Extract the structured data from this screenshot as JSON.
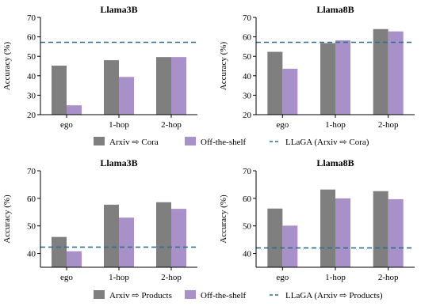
{
  "chart_data": [
    {
      "type": "bar",
      "title": "Llama3B",
      "categories": [
        "ego",
        "1-hop",
        "2-hop"
      ],
      "ylabel": "Accuracy (%)",
      "ylim": [
        20,
        70
      ],
      "yticks": [
        "20",
        "30",
        "40",
        "50",
        "60",
        "70"
      ],
      "series": [
        {
          "name": "Arxiv ⇨ Cora",
          "values": [
            45.2,
            48.0,
            49.6
          ],
          "color": "#7f7f7f"
        },
        {
          "name": "Off-the-shelf",
          "values": [
            24.8,
            39.4,
            49.6
          ],
          "color": "#a890c9"
        }
      ],
      "reference_line": {
        "name": "LLaGA (Arxiv ⇨ Cora)",
        "value": 57.2,
        "color": "#2e6f8e"
      }
    },
    {
      "type": "bar",
      "title": "Llama8B",
      "categories": [
        "ego",
        "1-hop",
        "2-hop"
      ],
      "ylabel": "Accuracy (%)",
      "ylim": [
        20,
        70
      ],
      "yticks": [
        "20",
        "30",
        "40",
        "50",
        "60",
        "70"
      ],
      "series": [
        {
          "name": "Arxiv ⇨ Cora",
          "values": [
            52.3,
            56.8,
            64.0
          ],
          "color": "#7f7f7f"
        },
        {
          "name": "Off-the-shelf",
          "values": [
            43.6,
            58.2,
            62.8
          ],
          "color": "#a890c9"
        }
      ],
      "reference_line": {
        "name": "LLaGA (Arxiv ⇨ Cora)",
        "value": 57.2,
        "color": "#2e6f8e"
      }
    },
    {
      "type": "bar",
      "title": "Llama3B",
      "categories": [
        "ego",
        "1-hop",
        "2-hop"
      ],
      "ylabel": "Accuracy (%)",
      "ylim": [
        35,
        70
      ],
      "yticks": [
        "40",
        "50",
        "60",
        "70"
      ],
      "series": [
        {
          "name": "Arxiv ⇨ Products",
          "values": [
            46.0,
            57.7,
            58.6
          ],
          "color": "#7f7f7f"
        },
        {
          "name": "Off-the-shelf",
          "values": [
            40.8,
            53.0,
            56.2
          ],
          "color": "#a890c9"
        }
      ],
      "reference_line": {
        "name": "LLaGA (Arxiv ⇨ Products)",
        "value": 42.3,
        "color": "#2e6f8e"
      }
    },
    {
      "type": "bar",
      "title": "Llama8B",
      "categories": [
        "ego",
        "1-hop",
        "2-hop"
      ],
      "ylabel": "Accuracy (%)",
      "ylim": [
        35,
        70
      ],
      "yticks": [
        "40",
        "50",
        "60",
        "70"
      ],
      "series": [
        {
          "name": "Arxiv ⇨ Products",
          "values": [
            56.3,
            63.2,
            62.6
          ],
          "color": "#7f7f7f"
        },
        {
          "name": "Off-the-shelf",
          "values": [
            50.1,
            60.0,
            59.7
          ],
          "color": "#a890c9"
        }
      ],
      "reference_line": {
        "name": "LLaGA (Arxiv ⇨ Products)",
        "value": 42.0,
        "color": "#2e6f8e"
      }
    }
  ],
  "legends": [
    {
      "items": [
        {
          "label": "Arxiv ⇨ Cora",
          "kind": "patch",
          "color": "#7f7f7f"
        },
        {
          "label": "Off-the-shelf",
          "kind": "patch",
          "color": "#a890c9"
        },
        {
          "label": "LLaGA (Arxiv ⇨ Cora)",
          "kind": "dash",
          "color": "#2e6f8e"
        }
      ]
    },
    {
      "items": [
        {
          "label": "Arxiv ⇨ Products",
          "kind": "patch",
          "color": "#7f7f7f"
        },
        {
          "label": "Off-the-shelf",
          "kind": "patch",
          "color": "#a890c9"
        },
        {
          "label": "LLaGA (Arxiv ⇨ Products)",
          "kind": "dash",
          "color": "#2e6f8e"
        }
      ]
    }
  ]
}
